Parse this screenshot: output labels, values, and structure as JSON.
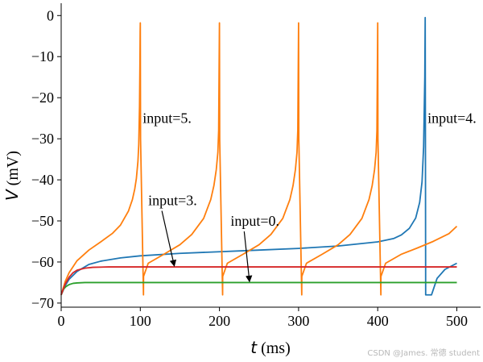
{
  "chart_data": {
    "type": "line",
    "xlabel": "t (ms)",
    "ylabel": "V (mV)",
    "xlim": [
      0,
      530
    ],
    "ylim": [
      -71,
      3
    ],
    "x_ticks": [
      0,
      100,
      200,
      300,
      400,
      500
    ],
    "y_ticks": [
      0,
      -10,
      -20,
      -30,
      -40,
      -50,
      -60,
      -70
    ],
    "grid": false,
    "series": [
      {
        "color": "#1f77b4",
        "x": [
          0,
          5,
          10,
          20,
          35,
          50,
          75,
          100,
          150,
          200,
          250,
          300,
          350,
          400,
          420,
          430,
          440,
          448,
          453,
          456,
          458,
          459.5,
          460,
          460.3,
          460.6,
          464,
          468,
          475,
          485,
          500
        ],
        "y": [
          -68,
          -65.8,
          -64.2,
          -62.3,
          -60.6,
          -59.8,
          -59.0,
          -58.5,
          -57.9,
          -57.5,
          -57.1,
          -56.7,
          -56.1,
          -55.1,
          -54.3,
          -53.4,
          -51.8,
          -49.3,
          -45.5,
          -40.5,
          -32,
          -15,
          -0.5,
          -30,
          -68,
          -68,
          -68,
          -64,
          -61.8,
          -60.3
        ]
      },
      {
        "color": "#ff7f0e",
        "x": [
          0,
          5,
          10,
          20,
          35,
          50,
          65,
          75,
          85,
          90,
          93,
          95,
          97,
          98,
          99,
          99.5,
          99.8,
          100,
          100.3,
          104,
          104.1,
          110,
          130,
          150,
          165,
          180,
          189,
          193,
          196,
          198,
          199,
          199.5,
          200,
          200.3,
          204,
          204.1,
          210,
          230,
          250,
          265,
          280,
          289,
          293,
          296,
          298,
          299,
          299.5,
          300,
          300.3,
          304,
          304.1,
          310,
          330,
          350,
          365,
          380,
          389,
          393,
          396,
          398,
          399,
          399.5,
          400,
          400.3,
          404,
          404.1,
          410,
          430,
          450,
          470,
          490,
          500
        ],
        "y": [
          -68,
          -64.8,
          -62.6,
          -59.7,
          -57.1,
          -55.1,
          -53.0,
          -51.0,
          -47.6,
          -44.8,
          -42.2,
          -39.7,
          -35.5,
          -31.5,
          -22,
          -12,
          -4,
          -1.8,
          -30,
          -68,
          -63.5,
          -60.3,
          -58.1,
          -55.8,
          -53.3,
          -49.4,
          -44.8,
          -41.4,
          -37.5,
          -33.3,
          -28,
          -15,
          -1.8,
          -30,
          -68,
          -63.5,
          -60.3,
          -58.1,
          -55.8,
          -53.3,
          -49.4,
          -44.8,
          -41.4,
          -37.5,
          -33.3,
          -28,
          -15,
          -1.8,
          -30,
          -68,
          -63.5,
          -60.3,
          -58.1,
          -55.8,
          -53.3,
          -49.4,
          -44.8,
          -41.4,
          -37.5,
          -33.3,
          -28,
          -15,
          -1.8,
          -30,
          -68,
          -63.5,
          -60.3,
          -58.1,
          -56.6,
          -55.0,
          -53.1,
          -51.3
        ]
      },
      {
        "color": "#2ca02c",
        "x": [
          0,
          3,
          6,
          10,
          15,
          20,
          30,
          40,
          60,
          100,
          200,
          300,
          400,
          500
        ],
        "y": [
          -68,
          -66.6,
          -66.0,
          -65.5,
          -65.2,
          -65.1,
          -65.0,
          -65.0,
          -65.0,
          -65.0,
          -65.0,
          -65.0,
          -65.0,
          -65.0
        ]
      },
      {
        "color": "#d62728",
        "x": [
          0,
          5,
          10,
          15,
          20,
          30,
          40,
          60,
          100,
          200,
          300,
          400,
          500
        ],
        "y": [
          -68,
          -65.4,
          -63.7,
          -62.6,
          -62.0,
          -61.5,
          -61.3,
          -61.2,
          -61.2,
          -61.2,
          -61.2,
          -61.2,
          -61.2
        ]
      }
    ],
    "annotations": [
      {
        "text": "input=5.",
        "x": 103,
        "y": -25
      },
      {
        "text": "input=4.",
        "x": 463,
        "y": -25
      },
      {
        "text": "input=3.",
        "x": 110,
        "y": -45,
        "arrow_to": [
          143,
          -61.2
        ]
      },
      {
        "text": "input=0.",
        "x": 214,
        "y": -50,
        "arrow_to": [
          238,
          -65
        ]
      }
    ]
  },
  "watermark": "CSDN @James. 常德 student"
}
